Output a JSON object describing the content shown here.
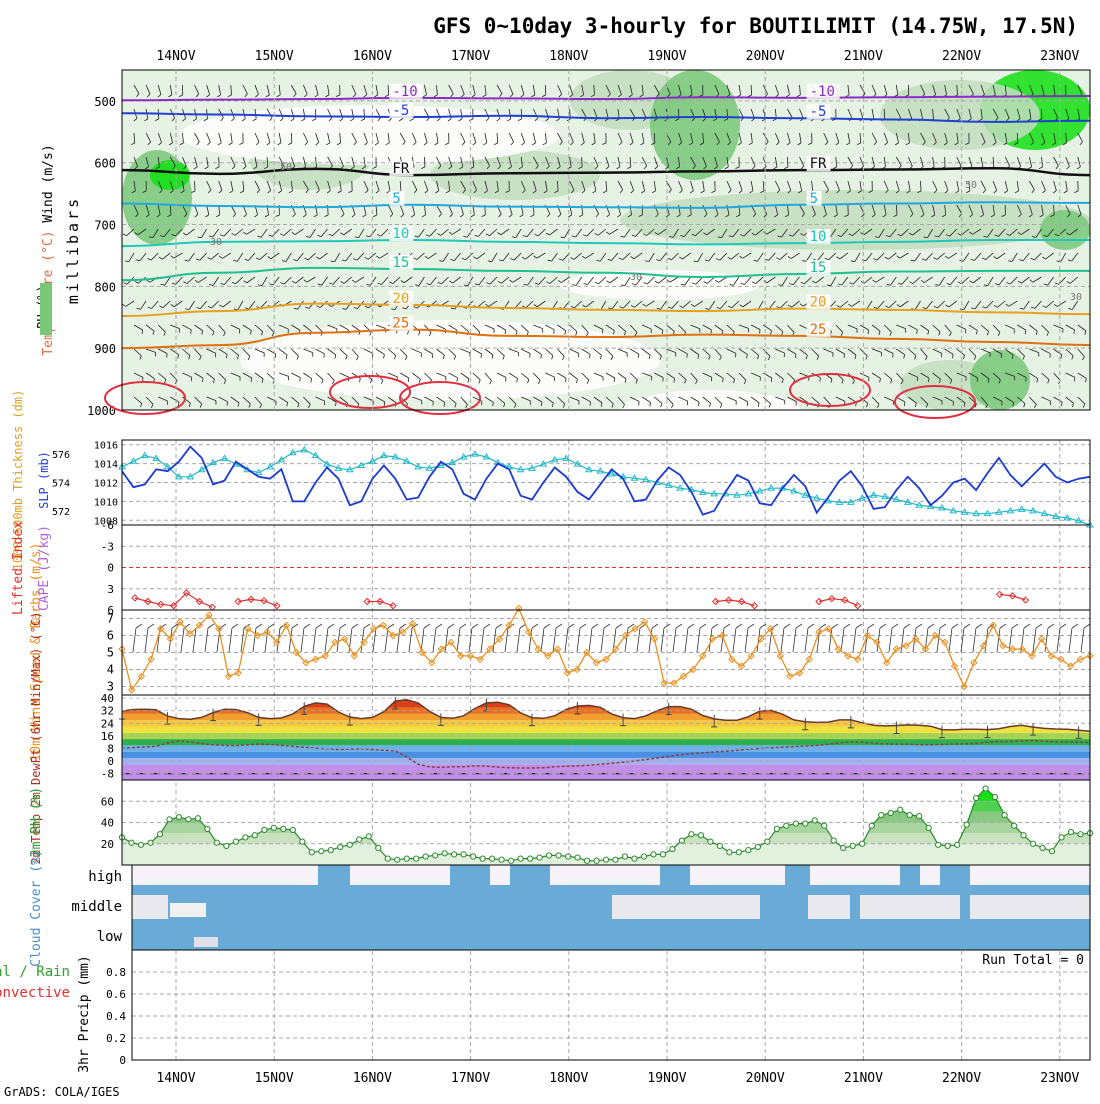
{
  "title": "GFS 0~10day 3-hourly for BOUTILIMIT (14.75W, 17.5N)",
  "credit": "GrADS: COLA/IGES",
  "dates": [
    "14NOV",
    "15NOV",
    "16NOV",
    "17NOV",
    "18NOV",
    "19NOV",
    "20NOV",
    "21NOV",
    "22NOV",
    "23NOV"
  ],
  "colors": {
    "rh_light": "#e6f2e3",
    "rh_mid": "#c2ddbe",
    "rh_dark": "#78c878",
    "rh_bright": "#10e010",
    "grid": "#a8a8a8",
    "slp": "#1a3ad0",
    "thickness": "#20b8c8",
    "lifted": "#e03030",
    "cape": "#b060e0",
    "wind10": "#e89020",
    "cloud": "#6aaad6",
    "cloud_gap": "#e8e8ee",
    "rh2m": "#2a8a2a"
  },
  "chart_data": [
    {
      "type": "cross-section",
      "name": "upper-air",
      "ylabel": "millibars",
      "yticks": [
        500,
        600,
        700,
        800,
        900,
        1000
      ],
      "ylim": [
        1000,
        450
      ],
      "legend": [
        "Temperature (°C)",
        "Wind (m/s)",
        "RH (%)"
      ],
      "isotherm_labels": [
        "-10",
        "-5",
        "FR",
        "5",
        "10",
        "15",
        "20",
        "25"
      ],
      "isotherms": [
        {
          "label": "-10",
          "color": "#8a2bc8",
          "p": [
            499,
            498,
            497,
            495,
            496,
            497,
            494,
            495,
            494,
            493,
            492
          ]
        },
        {
          "label": "-5",
          "color": "#2040d0",
          "p": [
            520,
            522,
            525,
            526,
            524,
            528,
            526,
            528,
            530,
            534,
            532
          ]
        },
        {
          "label": "FR",
          "color": "#101010",
          "p": [
            612,
            618,
            610,
            620,
            617,
            616,
            614,
            612,
            611,
            609,
            620
          ]
        },
        {
          "label": "5",
          "color": "#20a8e0",
          "p": [
            666,
            670,
            672,
            668,
            671,
            672,
            673,
            668,
            666,
            664,
            665
          ]
        },
        {
          "label": "10",
          "color": "#20c8b8",
          "p": [
            735,
            728,
            727,
            725,
            728,
            730,
            732,
            730,
            728,
            725,
            725
          ]
        },
        {
          "label": "15",
          "color": "#20c090",
          "p": [
            790,
            778,
            770,
            772,
            775,
            778,
            785,
            780,
            776,
            775,
            775
          ]
        },
        {
          "label": "20",
          "color": "#e8a020",
          "p": [
            848,
            840,
            828,
            830,
            835,
            838,
            840,
            836,
            838,
            842,
            845
          ]
        },
        {
          "label": "25",
          "color": "#e07010",
          "p": [
            900,
            895,
            875,
            870,
            880,
            882,
            878,
            880,
            885,
            890,
            895
          ]
        }
      ],
      "rh_contour_labels": [
        "30",
        "50"
      ]
    },
    {
      "type": "line",
      "name": "slp-thickness",
      "ylabel_left": "1000-500mb Thickness (dm)",
      "ylabel_right": "SLP (mb)",
      "left_ticks": [
        "576",
        "574",
        "572"
      ],
      "right_ticks": [
        "1016",
        "1014",
        "1012",
        "1010",
        "1008"
      ],
      "ylim_slp": [
        1007.5,
        1016.5
      ],
      "series": [
        {
          "name": "SLP (mb)",
          "values": [
            1013.2,
            1011.5,
            1011.8,
            1013.4,
            1013.2,
            1014.2,
            1015.8,
            1014.6,
            1011.8,
            1012.2,
            1014.2,
            1013.4,
            1012.6,
            1012.4,
            1013.4,
            1010.0,
            1010.0,
            1012.0,
            1013.6,
            1012.4,
            1009.6,
            1010.0,
            1012.4,
            1013.8,
            1012.4,
            1010.2,
            1010.4,
            1012.6,
            1014.2,
            1013.4,
            1010.8,
            1010.2,
            1012.4,
            1014.0,
            1013.4,
            1010.6,
            1010.2,
            1012.0,
            1013.6,
            1012.6,
            1011.0,
            1010.2,
            1011.8,
            1013.4,
            1012.4,
            1010.0,
            1010.2,
            1012.2,
            1013.6,
            1012.8,
            1011.0,
            1008.6,
            1009.0,
            1011.0,
            1012.8,
            1012.2,
            1009.8,
            1009.6,
            1011.4,
            1012.8,
            1011.6,
            1008.8,
            1010.4,
            1012.2,
            1013.2,
            1011.6,
            1009.2,
            1009.4,
            1011.2,
            1012.6,
            1011.4,
            1009.6,
            1010.6,
            1012.0,
            1012.4,
            1011.2,
            1013.0,
            1014.6,
            1012.8,
            1011.6,
            1012.8,
            1014.0,
            1012.6,
            1012.0,
            1012.4,
            1012.6
          ]
        },
        {
          "name": "Thickness (dm)",
          "values": [
            575.1,
            575.5,
            575.9,
            575.7,
            575.1,
            574.4,
            574.4,
            574.9,
            575.4,
            575.7,
            575.3,
            574.9,
            574.7,
            575.1,
            575.6,
            576.1,
            576.3,
            575.9,
            575.3,
            575.0,
            574.9,
            575.2,
            575.5,
            575.9,
            575.8,
            575.5,
            575.1,
            575.0,
            575.2,
            575.4,
            575.8,
            576.0,
            575.8,
            575.4,
            575.1,
            574.9,
            575.0,
            575.3,
            575.6,
            575.7,
            575.3,
            574.9,
            574.8,
            574.6,
            574.4,
            574.3,
            574.2,
            574.0,
            573.8,
            573.6,
            573.5,
            573.3,
            573.2,
            573.2,
            573.1,
            573.2,
            573.4,
            573.6,
            573.6,
            573.4,
            573.1,
            572.9,
            572.7,
            572.6,
            572.6,
            572.9,
            573.1,
            573.0,
            572.8,
            572.6,
            572.4,
            572.3,
            572.2,
            572.0,
            571.9,
            571.8,
            571.8,
            571.9,
            572.0,
            572.1,
            572.0,
            571.8,
            571.6,
            571.5,
            571.3,
            571.0
          ]
        }
      ]
    },
    {
      "type": "line",
      "name": "lifted-cape",
      "ylabel_left": "Lifted Index",
      "ylabel_right": "CAPE (J/kg)",
      "yticks": [
        "-6",
        "-3",
        "0",
        "3",
        "6"
      ],
      "ylim": [
        -6,
        6
      ],
      "series": [
        {
          "name": "Lifted Index",
          "values": [
            null,
            4.3,
            4.8,
            5.2,
            5.4,
            3.6,
            4.8,
            5.6,
            null,
            4.8,
            4.5,
            4.7,
            5.4,
            null,
            null,
            null,
            null,
            null,
            null,
            4.8,
            4.8,
            5.4,
            null,
            null,
            null,
            null,
            null,
            null,
            null,
            null,
            null,
            null,
            null,
            null,
            null,
            null,
            null,
            null,
            null,
            null,
            null,
            null,
            null,
            null,
            null,
            null,
            4.8,
            4.6,
            4.8,
            5.4,
            null,
            null,
            null,
            null,
            4.8,
            4.4,
            4.6,
            5.4,
            null,
            null,
            null,
            null,
            null,
            null,
            null,
            null,
            null,
            null,
            3.8,
            4.0,
            4.6,
            null,
            null,
            null,
            null,
            null
          ]
        },
        {
          "name": "CAPE (J/kg)",
          "values": []
        }
      ]
    },
    {
      "type": "line",
      "name": "wind10m",
      "ylabel": "10m Wind Speed & Barbs (m/s)",
      "yticks": [
        "3",
        "4",
        "5",
        "6",
        "7"
      ],
      "ylim": [
        2.5,
        7.5
      ],
      "series": [
        {
          "name": "10m Wind Speed (m/s)",
          "values": [
            5.2,
            2.8,
            3.6,
            4.6,
            6.4,
            5.8,
            6.8,
            6.1,
            6.6,
            7.2,
            6.4,
            3.6,
            3.8,
            6.4,
            6.0,
            6.2,
            5.6,
            6.6,
            5.0,
            4.4,
            4.6,
            4.8,
            5.6,
            5.8,
            4.8,
            5.6,
            6.4,
            6.6,
            6.0,
            6.2,
            6.7,
            5.0,
            4.4,
            5.2,
            5.6,
            4.8,
            4.8,
            4.6,
            5.2,
            5.8,
            6.6,
            7.6,
            6.2,
            5.2,
            4.8,
            5.2,
            3.8,
            4.0,
            5.0,
            4.4,
            4.6,
            5.2,
            6.0,
            6.4,
            6.8,
            5.8,
            3.2,
            3.2,
            3.6,
            4.0,
            4.8,
            5.8,
            6.0,
            4.6,
            4.2,
            4.8,
            5.8,
            6.4,
            4.8,
            3.6,
            3.8,
            4.6,
            6.2,
            6.4,
            5.2,
            4.8,
            4.6,
            6.0,
            5.6,
            4.4,
            5.2,
            5.4,
            5.8,
            5.2,
            6.0,
            5.6,
            4.2,
            3.0,
            4.4,
            5.4,
            6.6,
            5.4,
            5.2,
            5.2,
            4.8,
            5.8,
            4.8,
            4.6,
            4.2,
            4.6,
            4.8
          ]
        }
      ]
    },
    {
      "type": "area",
      "name": "temp2m",
      "ylabel": "2m Temp 2m DewPt (6hr Min/Max) (°C)",
      "yticks": [
        "-8",
        "0",
        "8",
        "16",
        "24",
        "32",
        "40"
      ],
      "ylim": [
        -12,
        42
      ],
      "series": [
        {
          "name": "2m Temp (°C)",
          "values": [
            31.8,
            32.8,
            33.0,
            32.6,
            28.6,
            27.0,
            26.6,
            27.8,
            30.8,
            33.0,
            32.8,
            30.8,
            27.8,
            27.0,
            27.4,
            30.0,
            34.8,
            37.0,
            36.2,
            31.2,
            28.0,
            27.0,
            27.8,
            31.4,
            38.2,
            39.0,
            37.0,
            31.6,
            27.8,
            27.2,
            28.8,
            33.4,
            37.0,
            37.4,
            35.8,
            30.6,
            27.6,
            27.2,
            28.8,
            32.8,
            35.0,
            35.4,
            34.2,
            30.0,
            27.6,
            27.0,
            28.8,
            32.0,
            34.6,
            34.6,
            33.0,
            29.0,
            26.8,
            26.0,
            26.0,
            28.2,
            31.8,
            32.2,
            29.8,
            26.2,
            25.0,
            24.6,
            24.8,
            26.2,
            26.2,
            24.4,
            22.8,
            22.4,
            22.6,
            23.0,
            22.8,
            22.2,
            20.0,
            19.8,
            20.2,
            20.2,
            20.0,
            20.6,
            22.0,
            22.8,
            21.6,
            20.8,
            20.4,
            20.2,
            19.6,
            19.0
          ]
        },
        {
          "name": "2m DewPt (°C)",
          "values": [
            8.0,
            8.6,
            9.0,
            9.4,
            11.6,
            12.8,
            12.2,
            11.2,
            10.4,
            10.0,
            9.8,
            10.4,
            10.8,
            10.6,
            10.0,
            9.4,
            8.8,
            8.2,
            7.8,
            7.4,
            7.6,
            7.8,
            7.4,
            6.8,
            6.4,
            2.6,
            -2.0,
            -3.6,
            -4.0,
            -3.6,
            -3.6,
            -3.0,
            -3.2,
            -3.8,
            -4.2,
            -4.4,
            -4.4,
            -4.2,
            -3.6,
            -3.2,
            -3.0,
            -2.6,
            -2.0,
            -1.4,
            -0.6,
            0.0,
            1.0,
            2.0,
            3.0,
            4.0,
            4.8,
            5.2,
            5.8,
            6.2,
            6.8,
            7.6,
            8.0,
            8.4,
            8.8,
            9.2,
            9.6,
            10.0,
            10.8,
            11.6,
            12.2,
            12.0,
            11.4,
            11.0,
            10.8,
            10.8,
            10.4,
            10.4,
            10.6,
            10.8,
            11.0,
            11.2,
            12.0,
            12.4,
            12.4,
            12.8,
            13.0,
            12.6,
            12.2,
            12.2,
            12.0,
            11.8
          ]
        }
      ]
    },
    {
      "type": "area",
      "name": "rh2m",
      "ylabel": "2m RH (%)",
      "yticks": [
        "20",
        "40",
        "60"
      ],
      "ylim": [
        0,
        80
      ],
      "series": [
        {
          "name": "2m RH (%)",
          "values": [
            26,
            21,
            19,
            21,
            29,
            43,
            45,
            43,
            44,
            34,
            21,
            18,
            22,
            26,
            28,
            33,
            35,
            34,
            33,
            22,
            12,
            13,
            14,
            17,
            19,
            24,
            27,
            16,
            6,
            5,
            6,
            6,
            8,
            9,
            11,
            10,
            10,
            8,
            6,
            6,
            5,
            4,
            6,
            6,
            7,
            9,
            9,
            8,
            7,
            4,
            4,
            5,
            5,
            8,
            6,
            8,
            10,
            10,
            15,
            23,
            29,
            28,
            22,
            18,
            12,
            12,
            14,
            17,
            22,
            34,
            37,
            39,
            39,
            42,
            37,
            23,
            16,
            18,
            20,
            37,
            47,
            49,
            52,
            47,
            46,
            35,
            19,
            18,
            19,
            38,
            63,
            72,
            64,
            47,
            37,
            28,
            20,
            16,
            13,
            26,
            31,
            29,
            30
          ]
        }
      ]
    },
    {
      "type": "bar",
      "name": "cloud-cover",
      "ylabel": "Cloud Cover (%)",
      "categories": [
        "high",
        "middle",
        "low"
      ]
    },
    {
      "type": "bar",
      "name": "precip",
      "ylabel_left": "Total / Rain",
      "ylabel_left2": "Convective",
      "ylabel": "3hr Precip (mm)",
      "yticks": [
        "0",
        "0.2",
        "0.4",
        "0.6",
        "0.8"
      ],
      "ylim": [
        0,
        1.0
      ],
      "run_total_label": "Run Total = 0",
      "values": []
    }
  ]
}
